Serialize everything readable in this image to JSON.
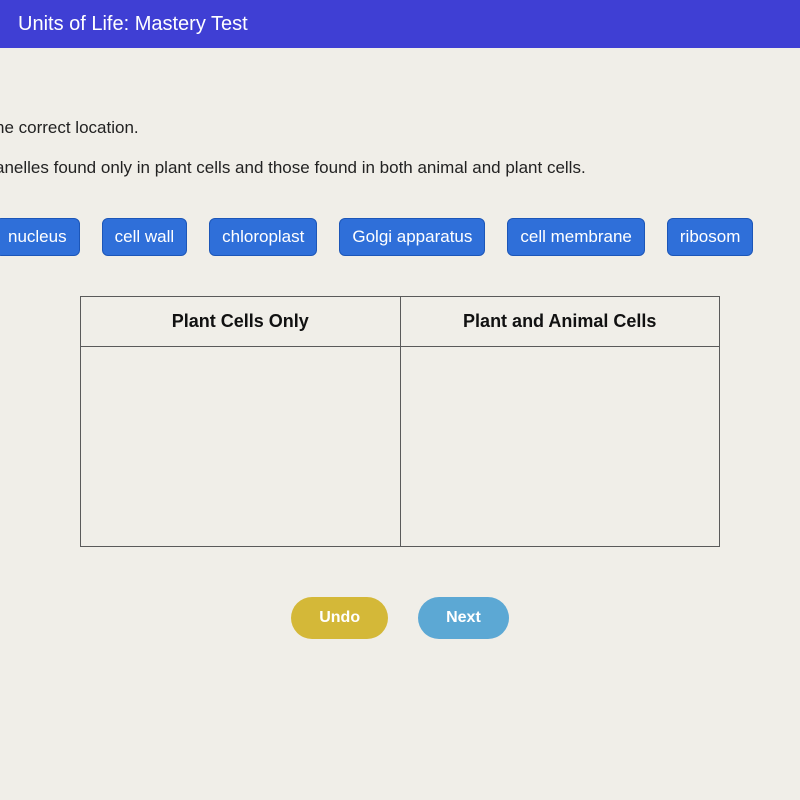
{
  "header": {
    "title": "Units of Life: Mastery Test"
  },
  "instructions": {
    "line1": "he correct location.",
    "line2": "anelles found only in plant cells and those found in both animal and plant cells."
  },
  "chips": [
    {
      "label": "nucleus"
    },
    {
      "label": "cell wall"
    },
    {
      "label": "chloroplast"
    },
    {
      "label": "Golgi apparatus"
    },
    {
      "label": "cell membrane"
    },
    {
      "label": "ribosom"
    }
  ],
  "table": {
    "columns": [
      "Plant Cells Only",
      "Plant and Animal Cells"
    ]
  },
  "buttons": {
    "undo": "Undo",
    "next": "Next"
  },
  "colors": {
    "header_bg": "#3f3fd4",
    "chip_bg": "#2f6fd9",
    "undo_bg": "#d4b838",
    "next_bg": "#5ca8d4",
    "page_bg": "#f0eee8"
  }
}
